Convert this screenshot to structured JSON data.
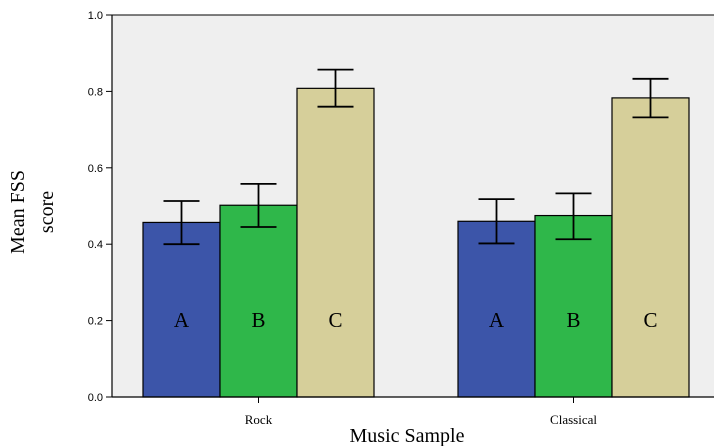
{
  "chart_data": {
    "type": "bar",
    "title": "",
    "xlabel": "Music Sample",
    "ylabel": [
      "Mean FSS",
      "score"
    ],
    "ylim": [
      0,
      1.0
    ],
    "yticks": [
      "0.0",
      "0.2",
      "0.4",
      "0.6",
      "0.8",
      "1.0"
    ],
    "grid": false,
    "legend": "none",
    "plot_background": "#efefef",
    "categories": [
      "Rock",
      "Classical"
    ],
    "series": [
      {
        "label": "A",
        "color": "#3c55a9",
        "values": [
          0.457,
          0.46
        ],
        "error_low": [
          0.4,
          0.402
        ],
        "error_high": [
          0.513,
          0.518
        ]
      },
      {
        "label": "B",
        "color": "#2fb74a",
        "values": [
          0.502,
          0.475
        ],
        "error_low": [
          0.445,
          0.413
        ],
        "error_high": [
          0.558,
          0.533
        ]
      },
      {
        "label": "C",
        "color": "#d6cf9a",
        "values": [
          0.808,
          0.783
        ],
        "error_low": [
          0.76,
          0.732
        ],
        "error_high": [
          0.857,
          0.833
        ]
      }
    ]
  }
}
